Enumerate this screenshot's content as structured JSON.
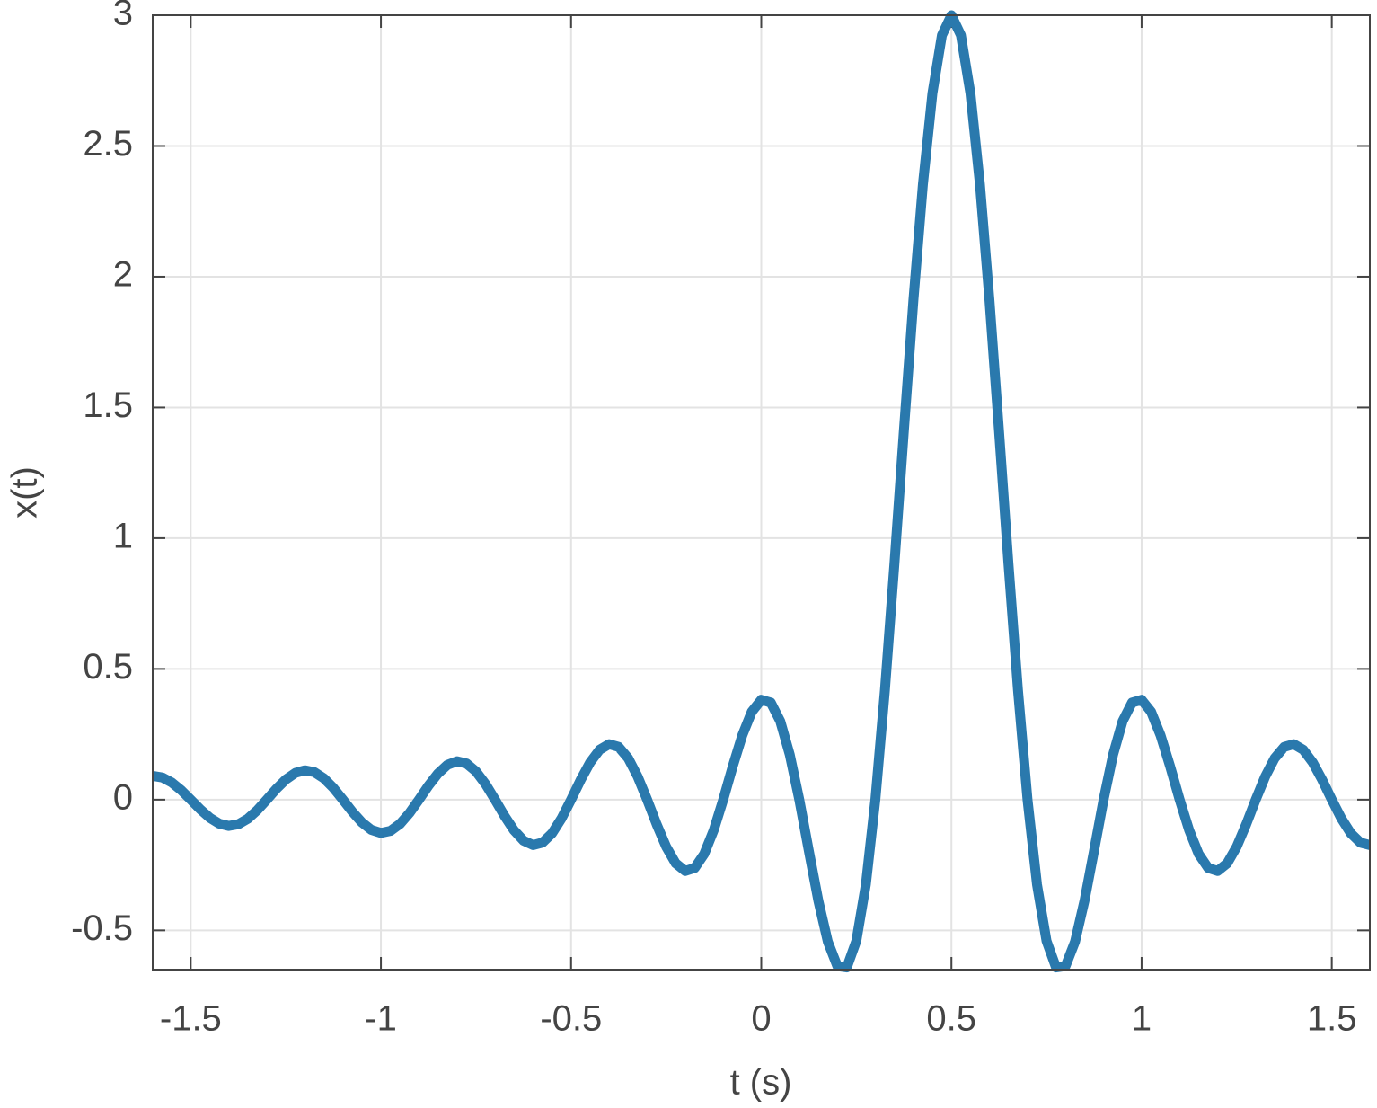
{
  "chart_data": {
    "type": "line",
    "xlabel": "t (s)",
    "ylabel": "x(t)",
    "color": "#2a79ad",
    "grid": true,
    "xlim": [
      -1.6,
      1.6
    ],
    "ylim": [
      -0.65,
      3
    ],
    "xticks": [
      -1.5,
      -1,
      -0.5,
      0,
      0.5,
      1,
      1.5
    ],
    "yticks": [
      -0.5,
      0,
      0.5,
      1,
      1.5,
      2,
      2.5,
      3
    ],
    "x": [
      -1.6,
      -1.575,
      -1.55,
      -1.525,
      -1.5,
      -1.475,
      -1.45,
      -1.425,
      -1.4,
      -1.375,
      -1.35,
      -1.325,
      -1.3,
      -1.275,
      -1.25,
      -1.225,
      -1.2,
      -1.175,
      -1.15,
      -1.125,
      -1.1,
      -1.075,
      -1.05,
      -1.025,
      -1,
      -0.975,
      -0.95,
      -0.925,
      -0.9,
      -0.875,
      -0.85,
      -0.825,
      -0.8,
      -0.775,
      -0.75,
      -0.725,
      -0.7,
      -0.675,
      -0.65,
      -0.625,
      -0.6,
      -0.575,
      -0.55,
      -0.525,
      -0.5,
      -0.475,
      -0.45,
      -0.425,
      -0.4,
      -0.375,
      -0.35,
      -0.325,
      -0.3,
      -0.275,
      -0.25,
      -0.225,
      -0.2,
      -0.175,
      -0.15,
      -0.125,
      -0.1,
      -0.075,
      -0.05,
      -0.025,
      0,
      0.025,
      0.05,
      0.075,
      0.1,
      0.125,
      0.15,
      0.175,
      0.2,
      0.225,
      0.25,
      0.275,
      0.3,
      0.325,
      0.35,
      0.375,
      0.4,
      0.425,
      0.45,
      0.475,
      0.5,
      0.525,
      0.55,
      0.575,
      0.6,
      0.625,
      0.65,
      0.675,
      0.7,
      0.725,
      0.75,
      0.775,
      0.8,
      0.825,
      0.85,
      0.875,
      0.9,
      0.925,
      0.95,
      0.975,
      1,
      1.025,
      1.05,
      1.075,
      1.1,
      1.125,
      1.15,
      1.175,
      1.2,
      1.225,
      1.25,
      1.275,
      1.3,
      1.325,
      1.35,
      1.375,
      1.4,
      1.425,
      1.45,
      1.475,
      1.5,
      1.525,
      1.55,
      1.575,
      1.6
    ],
    "values": [
      0.0909,
      0.085,
      0.0659,
      0.0361,
      0,
      -0.037,
      -0.0693,
      -0.0917,
      -0.1005,
      -0.0941,
      -0.073,
      -0.04,
      0,
      0.0412,
      0.0772,
      0.1023,
      0.1123,
      0.1053,
      0.0818,
      0.045,
      0,
      -0.0464,
      -0.0871,
      -0.1157,
      -0.1273,
      -0.1196,
      -0.0931,
      -0.0513,
      0,
      0.0532,
      0.1,
      0.1332,
      0.1469,
      0.1384,
      0.108,
      0.0597,
      0,
      -0.0622,
      -0.1174,
      -0.1568,
      -0.1736,
      -0.1641,
      -0.1286,
      -0.0713,
      0,
      0.075,
      0.1422,
      0.1908,
      0.2122,
      0.2017,
      0.1589,
      0.0886,
      0,
      -0.0943,
      -0.1801,
      -0.2434,
      -0.2728,
      -0.2614,
      -0.2078,
      -0.1169,
      0,
      0.1271,
      0.2455,
      0.3361,
      0.382,
      0.3715,
      0.3001,
      0.172,
      0,
      -0.1949,
      -0.3858,
      -0.5429,
      -0.6366,
      -0.6416,
      -0.5402,
      -0.3248,
      0,
      0.4176,
      0.9003,
      1.4116,
      1.9099,
      2.3526,
      2.701,
      2.9235,
      3,
      2.9235,
      2.701,
      2.3526,
      1.9099,
      1.4116,
      0.9003,
      0.4176,
      0,
      -0.3248,
      -0.5402,
      -0.6416,
      -0.6366,
      -0.5429,
      -0.3858,
      -0.1949,
      0,
      0.172,
      0.3001,
      0.3715,
      0.382,
      0.3361,
      0.2455,
      0.1271,
      0,
      -0.1169,
      -0.2078,
      -0.2614,
      -0.2728,
      -0.2434,
      -0.1801,
      -0.0943,
      0,
      0.0886,
      0.1589,
      0.2017,
      0.2122,
      0.1908,
      0.1422,
      0.075,
      0,
      -0.0713,
      -0.1286,
      -0.1641,
      -0.1736
    ]
  }
}
